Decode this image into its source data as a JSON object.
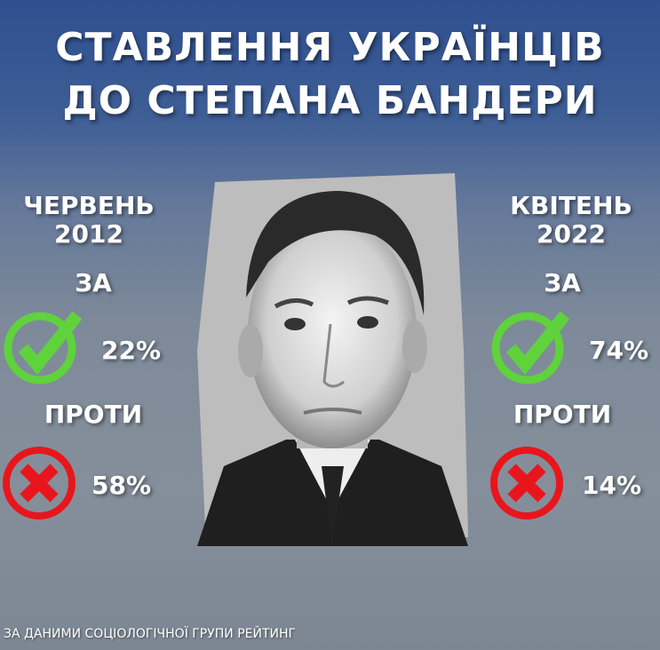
{
  "title": {
    "line1": "СТАВЛЕННЯ УКРАЇНЦІВ",
    "line2": "ДО СТЕПАНА БАНДЕРИ"
  },
  "left": {
    "period_month": "ЧЕРВЕНЬ",
    "period_year": "2012",
    "for_label": "ЗА",
    "for_value": "22%",
    "against_label": "ПРОТИ",
    "against_value": "58%"
  },
  "right": {
    "period_month": "КВІТЕНЬ",
    "period_year": "2022",
    "for_label": "ЗА",
    "for_value": "74%",
    "against_label": "ПРОТИ",
    "against_value": "14%"
  },
  "source": "ЗА ДАНИМИ СОЦІОЛОГІЧНОЇ ГРУПИ РЕЙТИНГ",
  "icons": {
    "for": "checkmark-icon",
    "against": "cross-icon"
  },
  "colors": {
    "for": "#5fd23c",
    "against": "#e8161c"
  }
}
